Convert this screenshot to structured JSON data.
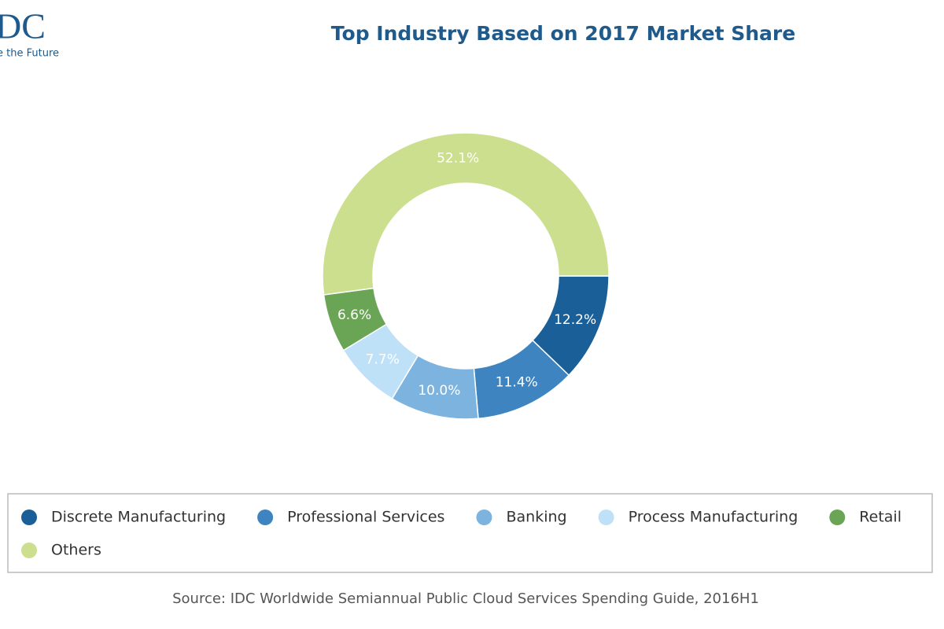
{
  "logo": {
    "text": "DC",
    "tagline": "e the Future"
  },
  "chart_data": {
    "type": "pie",
    "title": "Top Industry Based on 2017 Market Share",
    "categories": [
      "Discrete Manufacturing",
      "Professional Services",
      "Banking",
      "Process Manufacturing",
      "Retail",
      "Others"
    ],
    "values": [
      12.2,
      11.4,
      10.0,
      7.7,
      6.6,
      52.1
    ],
    "value_labels": [
      "12.2%",
      "11.4%",
      "10.0%",
      "7.7%",
      "6.6%",
      "52.1%"
    ],
    "colors": [
      "#1b5f98",
      "#3d84c0",
      "#7db3df",
      "#bfe1f8",
      "#6aa555",
      "#cbdf8f"
    ],
    "legend": "bottom",
    "source": "Source: IDC Worldwide Semiannual Public Cloud Services Spending Guide, 2016H1"
  }
}
